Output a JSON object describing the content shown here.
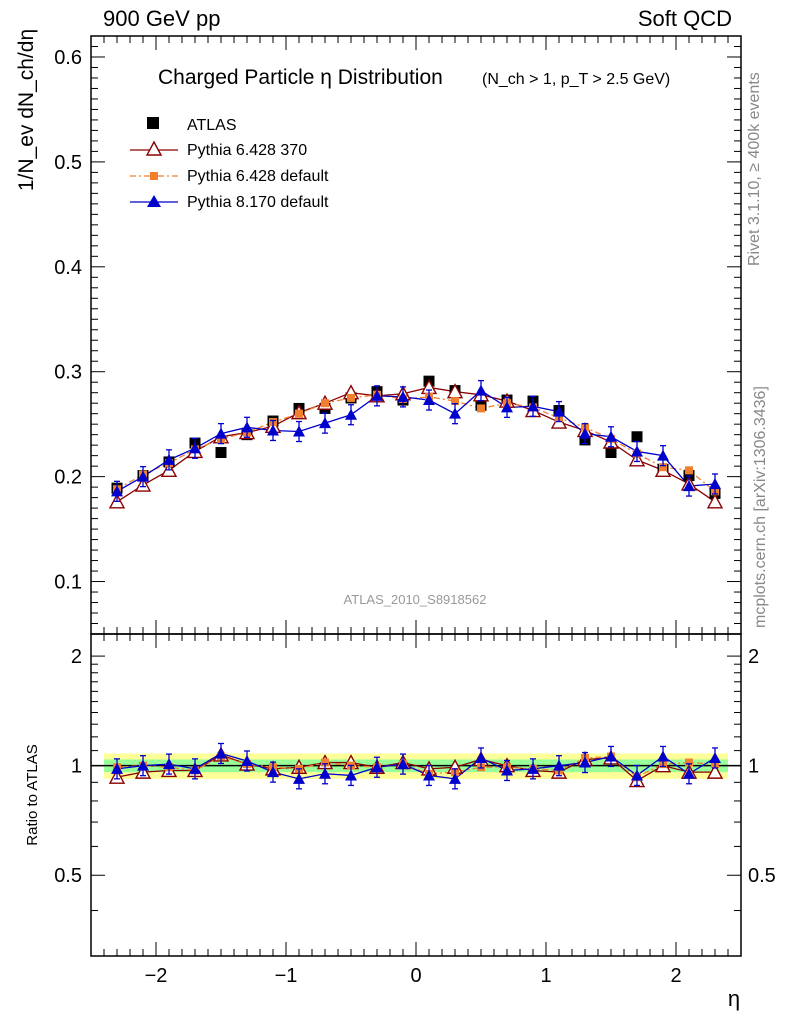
{
  "header": {
    "left": "900 GeV pp",
    "right": "Soft QCD"
  },
  "side_labels": {
    "rivet": "Rivet 3.1.10, ≥ 400k events",
    "mcplots": "mcplots.cern.ch [arXiv:1306.3436]"
  },
  "watermark": "ATLAS_2010_S8918562",
  "chart_data": {
    "type": "scatter",
    "title": "Charged Particle η Distribution",
    "title_cuts": "(N_ch > 1, p_T > 2.5 GeV)",
    "xlabel": "η",
    "ylabel": "1/N_ev dN_ch/dη",
    "ratio_ylabel": "Ratio to ATLAS",
    "xlim": [
      -2.5,
      2.5
    ],
    "ylim": [
      0.05,
      0.62
    ],
    "ratio_ylim": [
      0.3,
      2.3
    ],
    "legend_position": "top-left",
    "x_ticks": [
      -2,
      -1,
      0,
      1,
      2
    ],
    "y_ticks": [
      0.1,
      0.2,
      0.3,
      0.4,
      0.5,
      0.6
    ],
    "ratio_ticks": [
      0.5,
      1,
      2
    ],
    "x": [
      -2.3,
      -2.1,
      -1.9,
      -1.7,
      -1.5,
      -1.3,
      -1.1,
      -0.9,
      -0.7,
      -0.5,
      -0.3,
      -0.1,
      0.1,
      0.3,
      0.5,
      0.7,
      0.9,
      1.1,
      1.3,
      1.5,
      1.7,
      1.9,
      2.1,
      2.3
    ],
    "series": [
      {
        "name": "ATLAS",
        "style": "data",
        "color": "#000000",
        "values": [
          0.189,
          0.201,
          0.214,
          0.232,
          0.223,
          0.24,
          0.253,
          0.265,
          0.265,
          0.275,
          0.281,
          0.273,
          0.291,
          0.282,
          0.268,
          0.273,
          0.272,
          0.263,
          0.235,
          0.223,
          0.238,
          0.207,
          0.201,
          0.184
        ],
        "ratio_band_outer": 0.16,
        "ratio_band_inner": 0.08
      },
      {
        "name": "Pythia 6.428 370",
        "style": "open-triangle",
        "color": "#8b0000",
        "values": [
          0.176,
          0.192,
          0.206,
          0.224,
          0.238,
          0.242,
          0.248,
          0.261,
          0.27,
          0.28,
          0.277,
          0.279,
          0.285,
          0.281,
          0.278,
          0.272,
          0.263,
          0.252,
          0.244,
          0.233,
          0.216,
          0.206,
          0.193,
          0.176
        ],
        "ratio": [
          0.93,
          0.96,
          0.97,
          0.97,
          1.07,
          1.01,
          0.98,
          0.99,
          1.02,
          1.02,
          0.99,
          1.02,
          0.98,
          0.99,
          1.04,
          1.0,
          0.97,
          0.96,
          1.04,
          1.05,
          0.91,
          1.0,
          0.96,
          0.96
        ]
      },
      {
        "name": "Pythia 6.428 default",
        "style": "orange-square",
        "color": "#f08030",
        "values": [
          0.188,
          0.202,
          0.213,
          0.226,
          0.236,
          0.242,
          0.252,
          0.26,
          0.27,
          0.275,
          0.278,
          0.274,
          0.276,
          0.272,
          0.265,
          0.27,
          0.266,
          0.256,
          0.247,
          0.236,
          0.222,
          0.209,
          0.206,
          0.186
        ],
        "ratio": [
          0.99,
          1.0,
          0.99,
          0.97,
          1.06,
          1.01,
          0.99,
          0.98,
          1.02,
          1.0,
          0.99,
          1.01,
          0.95,
          0.96,
          0.99,
          0.99,
          0.98,
          0.97,
          1.05,
          1.06,
          0.93,
          1.01,
          1.02,
          1.01
        ]
      },
      {
        "name": "Pythia 8.170 default",
        "style": "filled-triangle",
        "color": "#0000cc",
        "values": [
          0.186,
          0.2,
          0.216,
          0.227,
          0.241,
          0.247,
          0.244,
          0.243,
          0.251,
          0.259,
          0.277,
          0.276,
          0.273,
          0.26,
          0.282,
          0.266,
          0.267,
          0.262,
          0.241,
          0.238,
          0.224,
          0.22,
          0.191,
          0.193
        ],
        "ratio": [
          0.98,
          1.0,
          1.01,
          0.98,
          1.08,
          1.03,
          0.96,
          0.92,
          0.95,
          0.94,
          0.99,
          1.01,
          0.94,
          0.92,
          1.05,
          0.97,
          0.98,
          1.0,
          1.02,
          1.06,
          0.94,
          1.06,
          0.95,
          1.05
        ]
      }
    ]
  }
}
